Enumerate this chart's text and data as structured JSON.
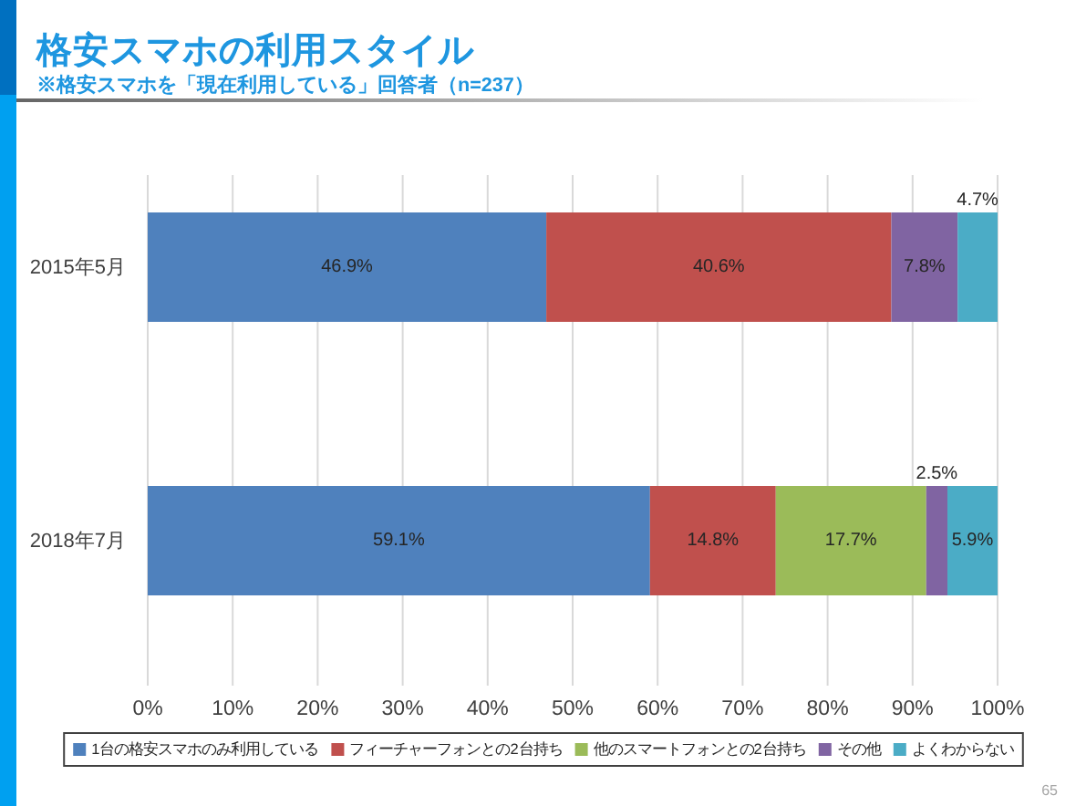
{
  "chart_data": {
    "type": "bar",
    "orientation": "horizontal",
    "stacked": true,
    "title": "格安スマホの利用スタイル",
    "subtitle": "※格安スマホを「現在利用している」回答者（n=237）",
    "categories": [
      "2015年5月",
      "2018年7月"
    ],
    "series": [
      {
        "name": "1台の格安スマホのみ利用している",
        "color": "#4f81bd",
        "values": [
          46.9,
          59.1
        ],
        "value_labels": [
          "46.9%",
          "59.1%"
        ]
      },
      {
        "name": "フィーチャーフォンとの2台持ち",
        "color": "#c0504d",
        "values": [
          40.6,
          14.8
        ],
        "value_labels": [
          "40.6%",
          "14.8%"
        ]
      },
      {
        "name": "他のスマートフォンとの2台持ち",
        "color": "#9bbb59",
        "values": [
          null,
          17.7
        ],
        "value_labels": [
          null,
          "17.7%"
        ]
      },
      {
        "name": "その他",
        "color": "#8064a2",
        "values": [
          7.8,
          2.5
        ],
        "value_labels": [
          "7.8%",
          "2.5%"
        ]
      },
      {
        "name": "よくわからない",
        "color": "#4bacc6",
        "values": [
          4.7,
          5.9
        ],
        "value_labels": [
          "4.7%",
          "5.9%"
        ]
      }
    ],
    "xlim": [
      0,
      100
    ],
    "xticks": [
      {
        "value": 0,
        "label": "0%"
      },
      {
        "value": 10,
        "label": "10%"
      },
      {
        "value": 20,
        "label": "20%"
      },
      {
        "value": 30,
        "label": "30%"
      },
      {
        "value": 40,
        "label": "40%"
      },
      {
        "value": 50,
        "label": "50%"
      },
      {
        "value": 60,
        "label": "60%"
      },
      {
        "value": 70,
        "label": "70%"
      },
      {
        "value": 80,
        "label": "80%"
      },
      {
        "value": 90,
        "label": "90%"
      },
      {
        "value": 100,
        "label": "100%"
      }
    ],
    "grid": "x",
    "legend": "bottom",
    "annotations": [
      "65"
    ]
  }
}
